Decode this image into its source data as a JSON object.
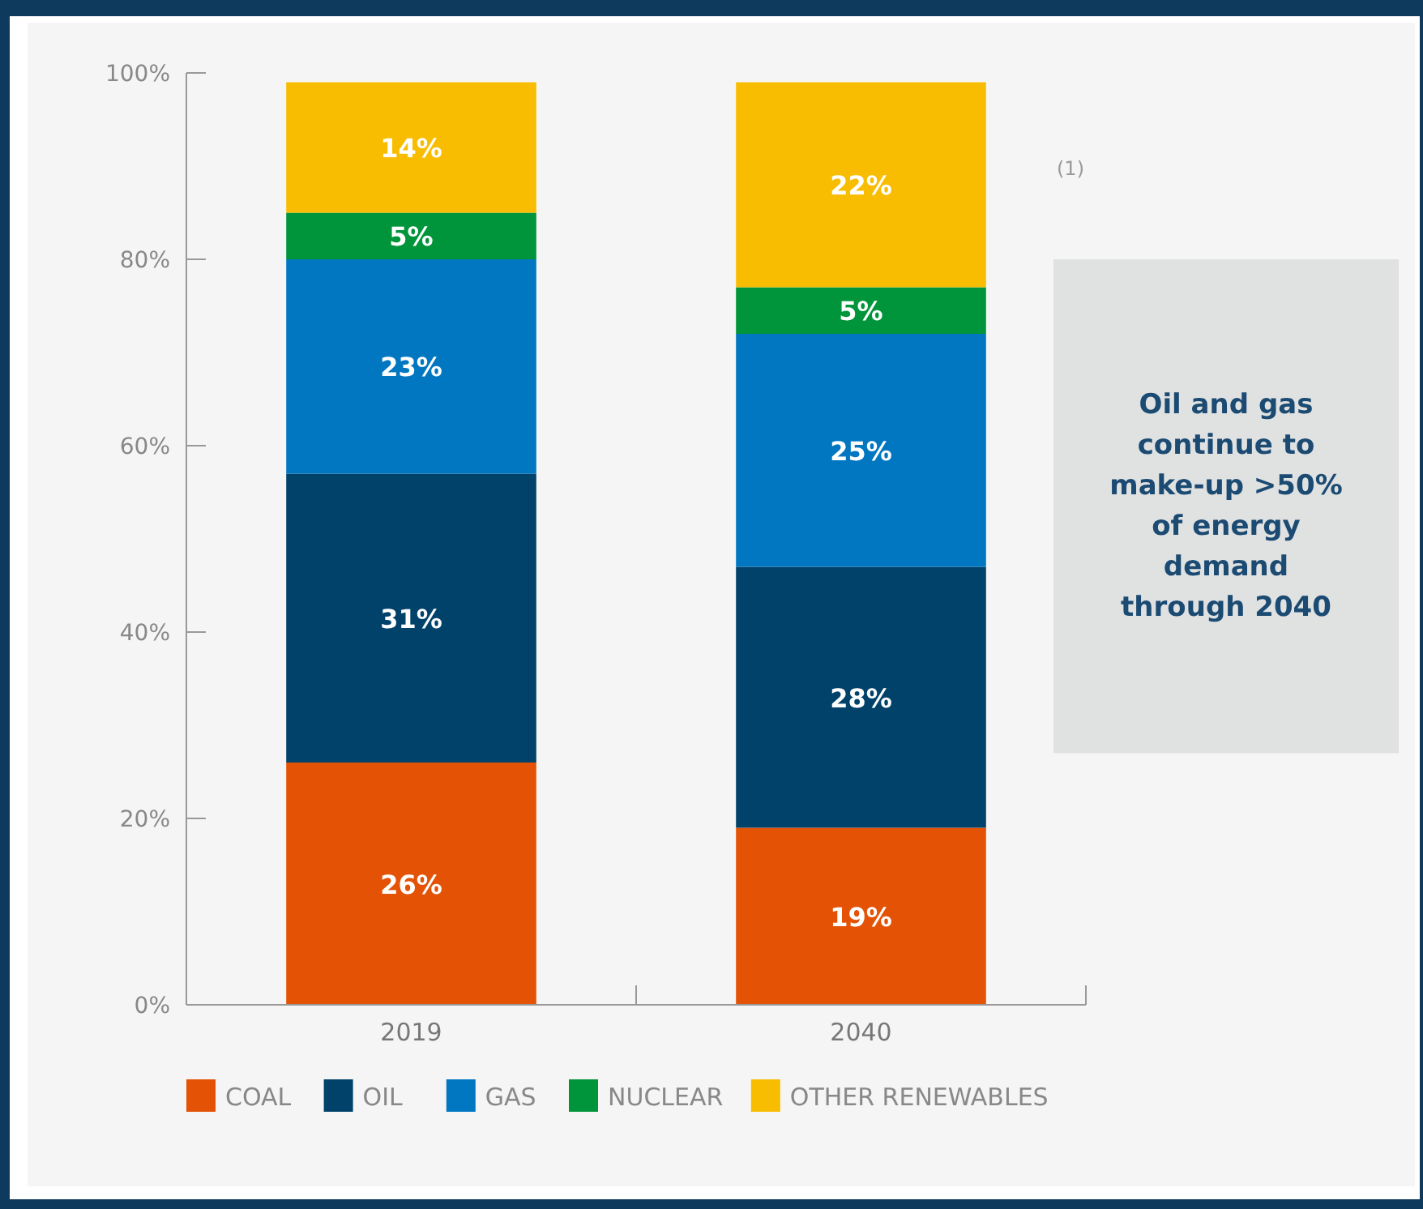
{
  "chart_data": {
    "type": "bar",
    "stacked": true,
    "categories": [
      "2019",
      "2040"
    ],
    "series": [
      {
        "name": "COAL",
        "color": "#e35205",
        "values": [
          26,
          19
        ],
        "value_labels": [
          "26%",
          "19%"
        ]
      },
      {
        "name": "OIL",
        "color": "#00426a",
        "values": [
          31,
          28
        ],
        "value_labels": [
          "31%",
          "28%"
        ]
      },
      {
        "name": "GAS",
        "color": "#0077c0",
        "values": [
          23,
          25
        ],
        "value_labels": [
          "23%",
          "25%"
        ]
      },
      {
        "name": "NUCLEAR",
        "color": "#00953a",
        "values": [
          5,
          5
        ],
        "value_labels": [
          "5%",
          "5%"
        ]
      },
      {
        "name": "OTHER RENEWABLES",
        "color": "#f8bd00",
        "values": [
          14,
          22
        ],
        "value_labels": [
          "14%",
          "22%"
        ]
      }
    ],
    "ylim": [
      0,
      100
    ],
    "yticks": [
      {
        "value": 0,
        "label": "0%"
      },
      {
        "value": 20,
        "label": "20%"
      },
      {
        "value": 40,
        "label": "40%"
      },
      {
        "value": 60,
        "label": "60%"
      },
      {
        "value": 80,
        "label": "80%"
      },
      {
        "value": 100,
        "label": "100%"
      }
    ],
    "legend": "bottom",
    "annotations": [
      "(1)",
      "Oil and gas continue to make-up >50% of energy demand through 2040"
    ]
  }
}
